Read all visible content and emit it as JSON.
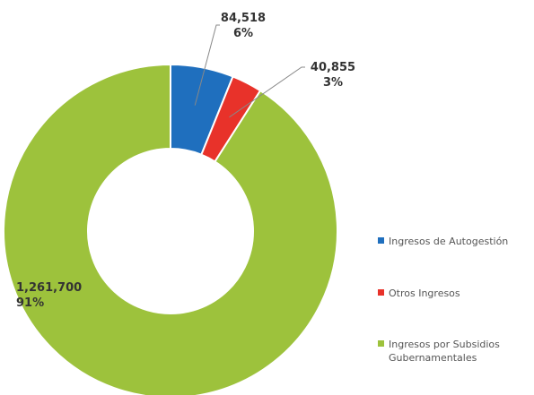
{
  "chart_data": {
    "type": "pie",
    "variant": "donut",
    "categories": [
      "Ingresos de Autogestión",
      "Otros Ingresos",
      "Ingresos por Subsidios Gubernamentales"
    ],
    "values": [
      84518,
      40855,
      1261700
    ],
    "value_labels": [
      "84,518",
      "40,855",
      "1,261,700"
    ],
    "percent_labels": [
      "6%",
      "3%",
      "91%"
    ],
    "colors": [
      "#1f6fbe",
      "#e8322a",
      "#9dc23c"
    ],
    "legend": {
      "position": "right",
      "entries": [
        {
          "label": "Ingresos de Autogestión"
        },
        {
          "label": "Otros Ingresos"
        },
        {
          "label": "Ingresos por Subsidios Gubernamentales",
          "line1": "Ingresos por Subsidios",
          "line2": "Gubernamentales"
        }
      ]
    }
  }
}
